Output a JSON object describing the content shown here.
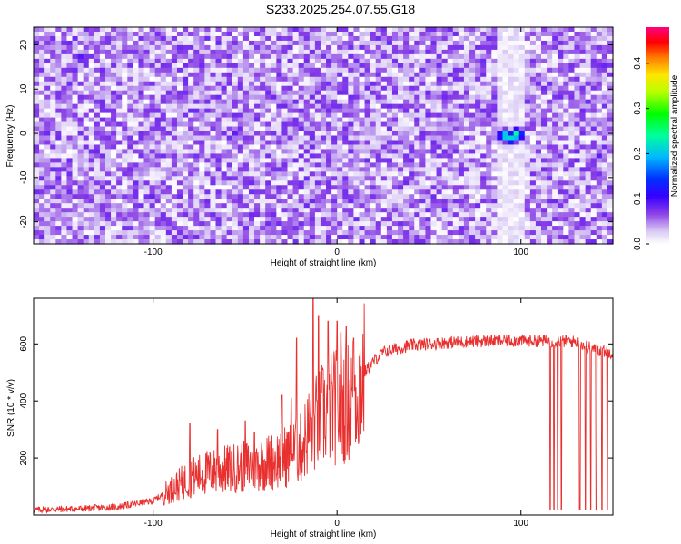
{
  "figure_title": "S233.2025.254.07.55.G18",
  "chart_data": [
    {
      "type": "heatmap",
      "xlabel": "Height of straight line (km)",
      "ylabel": "Frequency (Hz)",
      "xlim": [
        -165,
        150
      ],
      "ylim": [
        -25,
        24
      ],
      "x_ticks": [
        "-100",
        "0",
        "100"
      ],
      "x_tick_values": [
        -100,
        0,
        100
      ],
      "y_ticks": [
        "20",
        "10",
        "0",
        "-10",
        "-20"
      ],
      "y_tick_values": [
        20,
        10,
        0,
        -10,
        -20
      ],
      "colorbar": {
        "label": "Normalized spectral amplitude",
        "range": [
          0,
          0.48
        ],
        "ticks": [
          "0.0",
          "0.1",
          "0.2",
          "0.3",
          "0.4"
        ],
        "tick_values": [
          0.0,
          0.1,
          0.2,
          0.3,
          0.4
        ]
      },
      "background_amplitude": [
        0.0,
        0.08
      ],
      "peaks": [
        {
          "x": 91,
          "y": -0.5,
          "amplitude": 0.24
        },
        {
          "x": 95,
          "y": -1.0,
          "amplitude": 0.22
        },
        {
          "x": 98,
          "y": -0.3,
          "amplitude": 0.26
        },
        {
          "x": -140,
          "y": 17,
          "amplitude": 0.1
        },
        {
          "x": -86,
          "y": 19,
          "amplitude": 0.09
        },
        {
          "x": -100,
          "y": -14,
          "amplitude": 0.09
        },
        {
          "x": -55,
          "y": 0,
          "amplitude": 0.09
        },
        {
          "x": 57,
          "y": 0,
          "amplitude": 0.08
        },
        {
          "x": 145,
          "y": 15,
          "amplitude": 0.09
        },
        {
          "x": 143,
          "y": -5,
          "amplitude": 0.09
        },
        {
          "x": 73,
          "y": -24,
          "amplitude": 0.09
        },
        {
          "x": -92,
          "y": -20,
          "amplitude": 0.08
        }
      ],
      "low_amplitude_band": {
        "x": [
          88,
          102
        ]
      }
    },
    {
      "type": "line",
      "xlabel": "Height of straight line (km)",
      "ylabel": "SNR (10 * v/v)",
      "xlim": [
        -165,
        150
      ],
      "ylim": [
        0,
        760
      ],
      "x_ticks": [
        "-100",
        "0",
        "100"
      ],
      "x_tick_values": [
        -100,
        0,
        100
      ],
      "y_ticks": [
        "200",
        "400",
        "600"
      ],
      "y_tick_values": [
        200,
        400,
        600
      ],
      "grid": false,
      "color": "#e8302f",
      "series": [
        {
          "x": [
            -165,
            -140,
            -120,
            -100,
            -90,
            -80,
            -70,
            -60,
            -50,
            -40,
            -30,
            -20,
            -15,
            -10,
            -5,
            0,
            5,
            10,
            15,
            20,
            25,
            30,
            40,
            50,
            60,
            80,
            100,
            120,
            130,
            140,
            150
          ],
          "y": [
            18,
            22,
            28,
            50,
            90,
            130,
            150,
            160,
            170,
            180,
            200,
            230,
            300,
            330,
            370,
            380,
            390,
            430,
            500,
            540,
            570,
            580,
            595,
            600,
            605,
            610,
            612,
            610,
            608,
            580,
            570
          ]
        }
      ],
      "dropouts": [
        {
          "x": 116,
          "y": 20
        },
        {
          "x": 118,
          "y": 20
        },
        {
          "x": 120,
          "y": 20
        },
        {
          "x": 122,
          "y": 20
        },
        {
          "x": 132,
          "y": 20
        },
        {
          "x": 135,
          "y": 20
        },
        {
          "x": 138,
          "y": 20
        },
        {
          "x": 141,
          "y": 20
        },
        {
          "x": 144,
          "y": 20
        },
        {
          "x": 147,
          "y": 20
        }
      ],
      "spikes": [
        {
          "x": -80,
          "y": 320
        },
        {
          "x": -65,
          "y": 300
        },
        {
          "x": -50,
          "y": 330
        },
        {
          "x": -45,
          "y": 290
        },
        {
          "x": -30,
          "y": 420
        },
        {
          "x": -25,
          "y": 410
        },
        {
          "x": -22,
          "y": 620
        },
        {
          "x": -13,
          "y": 760
        },
        {
          "x": -10,
          "y": 700
        },
        {
          "x": -5,
          "y": 680
        },
        {
          "x": 0,
          "y": 680
        },
        {
          "x": 2,
          "y": 640
        },
        {
          "x": 5,
          "y": 660
        },
        {
          "x": 9,
          "y": 620
        }
      ]
    }
  ]
}
